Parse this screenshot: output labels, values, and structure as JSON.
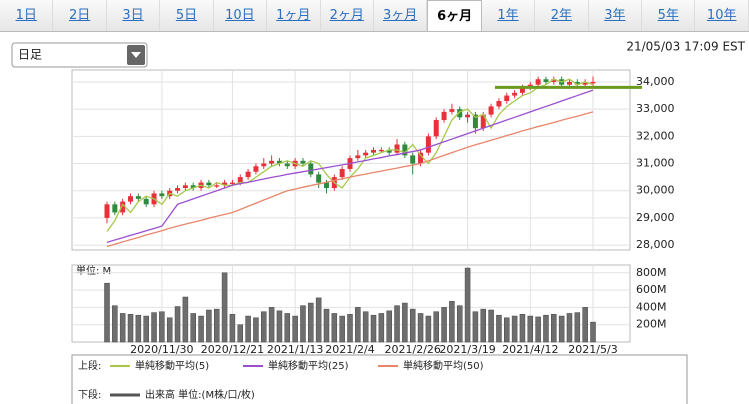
{
  "tabs": [
    "1日",
    "2日",
    "3日",
    "5日",
    "10日",
    "1ヶ月",
    "2ヶ月",
    "3ヶ月",
    "6ヶ月",
    "1年",
    "2年",
    "3年",
    "5年",
    "10年"
  ],
  "selected_tab": 8,
  "dropdown": "日足",
  "timestamp": "21/05/03 17:09 EST",
  "chart_data": {
    "type": "candlestick",
    "categories": [
      null,
      null,
      null,
      null,
      null,
      null,
      null,
      "2020/11/30",
      null,
      null,
      null,
      null,
      null,
      null,
      null,
      null,
      "2020/12/21",
      null,
      null,
      null,
      null,
      null,
      null,
      null,
      "2021/1/13",
      null,
      null,
      null,
      null,
      null,
      null,
      "2021/2/4",
      null,
      null,
      null,
      null,
      null,
      null,
      null,
      "2021/2/26",
      null,
      null,
      null,
      null,
      null,
      null,
      "2021/3/19",
      null,
      null,
      null,
      null,
      null,
      null,
      null,
      "2021/4/12",
      null,
      null,
      null,
      null,
      null,
      null,
      null,
      "2021/5/3"
    ],
    "ohlc": [
      [
        29000,
        29600,
        28800,
        29500
      ],
      [
        29500,
        29600,
        29100,
        29200
      ],
      [
        29200,
        29700,
        29100,
        29600
      ],
      [
        29600,
        29900,
        29500,
        29800
      ],
      [
        29800,
        29900,
        29600,
        29700
      ],
      [
        29700,
        29800,
        29400,
        29500
      ],
      [
        29500,
        30000,
        29400,
        29900
      ],
      [
        29900,
        30000,
        29700,
        29800
      ],
      [
        29800,
        30100,
        29700,
        30000
      ],
      [
        30000,
        30200,
        29900,
        30100
      ],
      [
        30100,
        30300,
        30000,
        30200
      ],
      [
        30200,
        30300,
        30000,
        30100
      ],
      [
        30100,
        30400,
        30000,
        30300
      ],
      [
        30300,
        30400,
        30100,
        30200
      ],
      [
        30150,
        30300,
        30100,
        30200
      ],
      [
        30200,
        30400,
        30100,
        30300
      ],
      [
        30250,
        30400,
        30200,
        30300
      ],
      [
        30300,
        30600,
        30200,
        30500
      ],
      [
        30500,
        30800,
        30400,
        30700
      ],
      [
        30700,
        31000,
        30600,
        30900
      ],
      [
        30900,
        31200,
        30800,
        31000
      ],
      [
        31000,
        31300,
        30900,
        31100
      ],
      [
        31100,
        31200,
        30900,
        31000
      ],
      [
        31000,
        31100,
        30800,
        30900
      ],
      [
        30900,
        31200,
        30800,
        31100
      ],
      [
        31100,
        31200,
        30900,
        31000
      ],
      [
        31000,
        31100,
        30500,
        30600
      ],
      [
        30600,
        30700,
        30100,
        30300
      ],
      [
        30300,
        30400,
        29900,
        30100
      ],
      [
        30100,
        30600,
        30000,
        30500
      ],
      [
        30500,
        30900,
        30400,
        30800
      ],
      [
        30800,
        31300,
        30700,
        31200
      ],
      [
        31200,
        31500,
        31100,
        31300
      ],
      [
        31300,
        31500,
        31200,
        31400
      ],
      [
        31400,
        31600,
        31300,
        31500
      ],
      [
        31450,
        31600,
        31400,
        31500
      ],
      [
        31500,
        31600,
        31300,
        31400
      ],
      [
        31400,
        31900,
        31300,
        31700
      ],
      [
        31700,
        31800,
        31200,
        31300
      ],
      [
        31300,
        31400,
        30600,
        31000
      ],
      [
        31000,
        31500,
        30900,
        31400
      ],
      [
        31400,
        32100,
        31300,
        32000
      ],
      [
        32000,
        32700,
        31900,
        32600
      ],
      [
        32600,
        33000,
        32500,
        32900
      ],
      [
        32900,
        33200,
        32800,
        33000
      ],
      [
        33000,
        33100,
        32600,
        32700
      ],
      [
        32700,
        32900,
        32500,
        32800
      ],
      [
        32800,
        32900,
        32100,
        32300
      ],
      [
        32300,
        32900,
        32200,
        32800
      ],
      [
        32800,
        33200,
        32700,
        33100
      ],
      [
        33100,
        33400,
        33000,
        33300
      ],
      [
        33300,
        33600,
        33200,
        33500
      ],
      [
        33500,
        33700,
        33400,
        33600
      ],
      [
        33600,
        33900,
        33500,
        33800
      ],
      [
        33800,
        34000,
        33700,
        33900
      ],
      [
        33900,
        34200,
        33800,
        34100
      ],
      [
        34100,
        34200,
        33900,
        34000
      ],
      [
        34000,
        34200,
        33900,
        34100
      ],
      [
        34100,
        34200,
        33800,
        33900
      ],
      [
        33900,
        34100,
        33800,
        34000
      ],
      [
        34000,
        34100,
        33800,
        33900
      ],
      [
        33900,
        34100,
        33800,
        34000
      ],
      [
        33950,
        34200,
        33800,
        34000
      ]
    ],
    "up_color": "#e8303a",
    "down_color": "#2e8b3e",
    "series": [
      {
        "name": "単純移動平均(5)",
        "color": "#a8c84a",
        "values": [
          28500,
          28900,
          29500,
          29200,
          29600,
          29800,
          29700,
          29500,
          29900,
          29800,
          30000,
          30100,
          30200,
          30100,
          30300,
          30200,
          30200,
          30300,
          30300,
          30500,
          30700,
          30900,
          31000,
          31100,
          31000,
          30900,
          31100,
          31000,
          30600,
          30300,
          30100,
          30500,
          30800,
          31200,
          31300,
          31400,
          31500,
          31500,
          31400,
          31700,
          31300,
          31000,
          31400,
          32000,
          32600,
          32900,
          33000,
          32700,
          32800,
          32300,
          32800,
          33100,
          33300,
          33500,
          33600,
          33800,
          33900,
          34100,
          34000,
          34100,
          33900,
          34000,
          33900
        ]
      },
      {
        "name": "単純移動平均(25)",
        "color": "#9b4fd0",
        "values": [
          28100,
          28190,
          28270,
          28360,
          28440,
          28530,
          28610,
          28700,
          29100,
          29500,
          29600,
          29700,
          29800,
          29900,
          30000,
          30100,
          30200,
          30260,
          30310,
          30370,
          30430,
          30490,
          30540,
          30600,
          30650,
          30700,
          30750,
          30800,
          30850,
          30900,
          30950,
          31000,
          31060,
          31110,
          31170,
          31220,
          31280,
          31330,
          31390,
          31440,
          31500,
          31600,
          31700,
          31800,
          31900,
          32000,
          32100,
          32200,
          32300,
          32400,
          32500,
          32600,
          32700,
          32800,
          32900,
          33000,
          33100,
          33200,
          33300,
          33400,
          33500,
          33600,
          33700
        ]
      },
      {
        "name": "単純移動平均(50)",
        "color": "#e8866a",
        "values": [
          27950,
          28030,
          28120,
          28200,
          28280,
          28370,
          28450,
          28530,
          28620,
          28700,
          28770,
          28840,
          28910,
          28990,
          29060,
          29130,
          29200,
          29310,
          29430,
          29540,
          29660,
          29770,
          29890,
          30000,
          30060,
          30130,
          30190,
          30250,
          30310,
          30380,
          30440,
          30500,
          30560,
          30610,
          30670,
          30720,
          30780,
          30830,
          30890,
          30940,
          31000,
          31100,
          31200,
          31300,
          31400,
          31500,
          31600,
          31690,
          31770,
          31860,
          31940,
          32030,
          32110,
          32200,
          32280,
          32360,
          32430,
          32510,
          32590,
          32670,
          32740,
          32820,
          32900
        ]
      }
    ],
    "hline": 33800,
    "hline_color": "#6a9a1f",
    "ylim": [
      27820,
      34440
    ],
    "yticks": [
      {
        "value": 28000,
        "label": "28,000"
      },
      {
        "value": 29000,
        "label": "29,000"
      },
      {
        "value": 30000,
        "label": "30,000"
      },
      {
        "value": 31000,
        "label": "31,000"
      },
      {
        "value": 32000,
        "label": "32,000"
      },
      {
        "value": 33000,
        "label": "33,000"
      },
      {
        "value": 34000,
        "label": "34,000"
      }
    ],
    "volume": {
      "unit_label": "単位: M",
      "name": "出来高 単位:(M株/口/枚)",
      "color": "#6e6e6e",
      "values": [
        680,
        420,
        330,
        320,
        310,
        300,
        340,
        350,
        280,
        410,
        520,
        330,
        300,
        370,
        380,
        800,
        320,
        200,
        300,
        280,
        350,
        400,
        360,
        330,
        300,
        420,
        450,
        510,
        380,
        330,
        300,
        320,
        400,
        350,
        310,
        330,
        360,
        420,
        450,
        380,
        330,
        300,
        350,
        400,
        470,
        420,
        855,
        350,
        380,
        370,
        310,
        280,
        300,
        320,
        300,
        290,
        310,
        320,
        300,
        330,
        340,
        400,
        230
      ],
      "ylim": [
        0,
        890
      ],
      "yticks": [
        {
          "value": 200,
          "label": "200M"
        },
        {
          "value": 400,
          "label": "400M"
        },
        {
          "value": 600,
          "label": "600M"
        },
        {
          "value": 800,
          "label": "800M"
        }
      ]
    },
    "legend": {
      "upper_label": "上段:",
      "lower_label": "下段:"
    }
  }
}
